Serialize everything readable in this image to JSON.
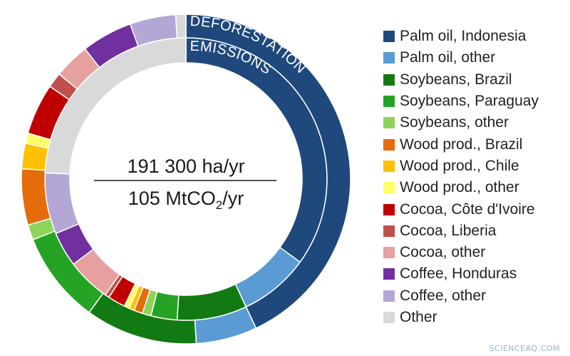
{
  "chart_data": {
    "type": "pie",
    "subtype": "nested-donut",
    "center_text": {
      "top": "191 300 ha/yr",
      "bottom_prefix": "105 MtCO",
      "bottom_sub": "2",
      "bottom_suffix": "/yr"
    },
    "outer_ring_label": [
      "DEFORESTATION",
      "EMISSIONS"
    ],
    "legend_position": "right",
    "categories": [
      "Palm oil, Indonesia",
      "Palm oil, other",
      "Soybeans, Brazil",
      "Soybeans, Paraguay",
      "Soybeans, other",
      "Wood prod., Brazil",
      "Wood prod., Chile",
      "Wood prod., other",
      "Cocoa, Côte d'Ivoire",
      "Cocoa, Liberia",
      "Cocoa, other",
      "Coffee, Honduras",
      "Coffee, other",
      "Other"
    ],
    "colors": [
      "#1f497d",
      "#5b9bd5",
      "#127a12",
      "#24a324",
      "#8fd45a",
      "#e46c0a",
      "#ffc000",
      "#ffff66",
      "#c00000",
      "#c0504d",
      "#e6a0a0",
      "#7030a0",
      "#b4a7d6",
      "#d9d9d9"
    ],
    "series": [
      {
        "name": "DEFORESTATION",
        "ring": "inner",
        "values": [
          35,
          8,
          8,
          3,
          1,
          1,
          0.6,
          0.6,
          2,
          0.5,
          5,
          4,
          7,
          24.3
        ]
      },
      {
        "name": "EMISSIONS",
        "ring": "outer",
        "values": [
          43,
          6,
          11,
          9,
          1.5,
          5.5,
          2.5,
          1,
          5,
          1.5,
          3.5,
          5,
          4.5,
          1.0
        ]
      }
    ]
  },
  "watermark": "SCIENCEAQ.COM"
}
